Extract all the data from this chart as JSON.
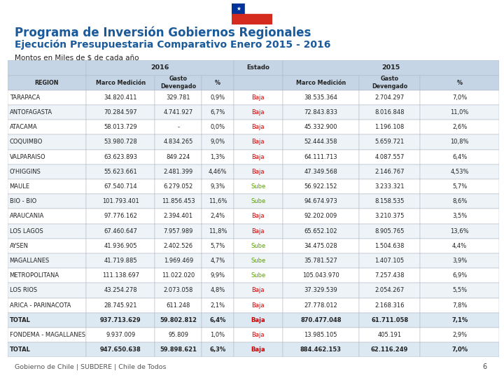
{
  "title1": "Programa de Inversión Gobiernos Regionales",
  "title2": "Ejecución Presupuestaria Comparativo Enero 2015 - 2016",
  "title3": "Montos en Miles de $ de cada año",
  "footer": "Gobierno de Chile | SUBDERE | Chile de Todos",
  "page_num": "6",
  "rows": [
    [
      "TARAPACA",
      "34.820.411",
      "329.781",
      "0,9%",
      "Baja",
      "38.535.364",
      "2.704.297",
      "7,0%"
    ],
    [
      "ANTOFAGASTA",
      "70.284.597",
      "4.741.927",
      "6,7%",
      "Baja",
      "72.843.833",
      "8.016.848",
      "11,0%"
    ],
    [
      "ATACAMA",
      "58.013.729",
      "-",
      "0,0%",
      "Baja",
      "45.332.900",
      "1.196.108",
      "2,6%"
    ],
    [
      "COQUIMBO",
      "53.980.728",
      "4.834.265",
      "9,0%",
      "Baja",
      "52.444.358",
      "5.659.721",
      "10,8%"
    ],
    [
      "VALPARAISO",
      "63.623.893",
      "849.224",
      "1,3%",
      "Baja",
      "64.111.713",
      "4.087.557",
      "6,4%"
    ],
    [
      "O'HIGGINS",
      "55.623.661",
      "2.481.399",
      "4,46%",
      "Baja",
      "47.349.568",
      "2.146.767",
      "4,53%"
    ],
    [
      "MAULE",
      "67.540.714",
      "6.279.052",
      "9,3%",
      "Sube",
      "56.922.152",
      "3.233.321",
      "5,7%"
    ],
    [
      "BIO - BIO",
      "101.793.401",
      "11.856.453",
      "11,6%",
      "Sube",
      "94.674.973",
      "8.158.535",
      "8,6%"
    ],
    [
      "ARAUCANIA",
      "97.776.162",
      "2.394.401",
      "2,4%",
      "Baja",
      "92.202.009",
      "3.210.375",
      "3,5%"
    ],
    [
      "LOS LAGOS",
      "67.460.647",
      "7.957.989",
      "11,8%",
      "Baja",
      "65.652.102",
      "8.905.765",
      "13,6%"
    ],
    [
      "AYSEN",
      "41.936.905",
      "2.402.526",
      "5,7%",
      "Sube",
      "34.475.028",
      "1.504.638",
      "4,4%"
    ],
    [
      "MAGALLANES",
      "41.719.885",
      "1.969.469",
      "4,7%",
      "Sube",
      "35.781.527",
      "1.407.105",
      "3,9%"
    ],
    [
      "METROPOLITANA",
      "111.138.697",
      "11.022.020",
      "9,9%",
      "Sube",
      "105.043.970",
      "7.257.438",
      "6,9%"
    ],
    [
      "LOS RIOS",
      "43.254.278",
      "2.073.058",
      "4,8%",
      "Baja",
      "37.329.539",
      "2.054.267",
      "5,5%"
    ],
    [
      "ARICA - PARINACOTA",
      "28.745.921",
      "611.248",
      "2,1%",
      "Baja",
      "27.778.012",
      "2.168.316",
      "7,8%"
    ],
    [
      "TOTAL",
      "937.713.629",
      "59.802.812",
      "6,4%",
      "Baja",
      "870.477.048",
      "61.711.058",
      "7,1%"
    ],
    [
      "FONDEMA - MAGALLANES",
      "9.937.009",
      "95.809",
      "1,0%",
      "Baja",
      "13.985.105",
      "405.191",
      "2,9%"
    ],
    [
      "TOTAL",
      "947.650.638",
      "59.898.621",
      "6,3%",
      "Baja",
      "884.462.153",
      "62.116.249",
      "7,0%"
    ]
  ],
  "total_rows": [
    15,
    17
  ],
  "baja_color": "#cc0000",
  "sube_color": "#5aa000",
  "header_bg": "#c5d5e5",
  "total_bg": "#dce8f2",
  "alt_row_bg": "#eef3f8",
  "normal_row_bg": "#ffffff",
  "title_color": "#1a5a9a",
  "text_color": "#222222",
  "flag_blue": "#003399",
  "flag_red": "#d52b1e",
  "flag_white": "#ffffff"
}
